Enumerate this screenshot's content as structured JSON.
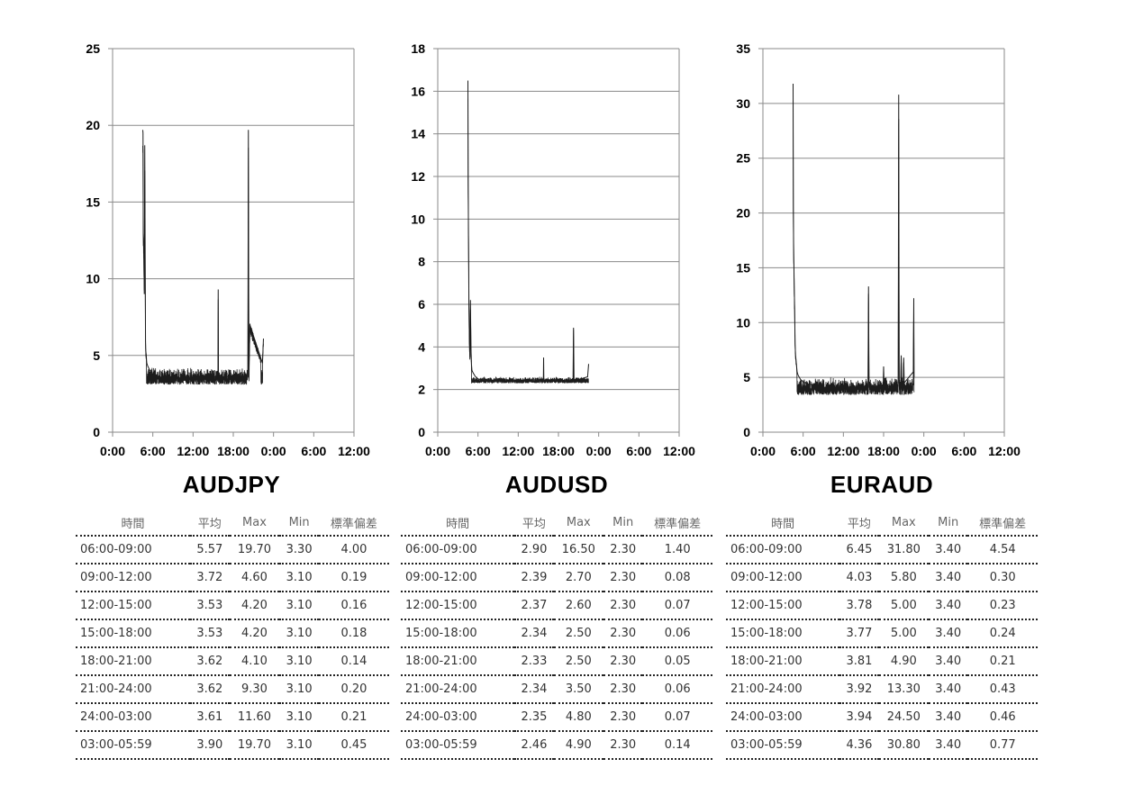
{
  "x_ticks": [
    "0:00",
    "6:00",
    "12:00",
    "18:00",
    "0:00",
    "6:00",
    "12:00"
  ],
  "table_headers": [
    "時間",
    "平均",
    "Max",
    "Min",
    "標準偏差"
  ],
  "panels": [
    {
      "title": "AUDJPY",
      "y_ticks": [
        "0",
        "5",
        "10",
        "15",
        "20",
        "25"
      ],
      "rows": [
        [
          "06:00-09:00",
          "5.57",
          "19.70",
          "3.30",
          "4.00"
        ],
        [
          "09:00-12:00",
          "3.72",
          "4.60",
          "3.10",
          "0.19"
        ],
        [
          "12:00-15:00",
          "3.53",
          "4.20",
          "3.10",
          "0.16"
        ],
        [
          "15:00-18:00",
          "3.53",
          "4.20",
          "3.10",
          "0.18"
        ],
        [
          "18:00-21:00",
          "3.62",
          "4.10",
          "3.10",
          "0.14"
        ],
        [
          "21:00-24:00",
          "3.62",
          "9.30",
          "3.10",
          "0.20"
        ],
        [
          "24:00-03:00",
          "3.61",
          "11.60",
          "3.10",
          "0.21"
        ],
        [
          "03:00-05:59",
          "3.90",
          "19.70",
          "3.10",
          "0.45"
        ]
      ]
    },
    {
      "title": "AUDUSD",
      "y_ticks": [
        "0",
        "2",
        "4",
        "6",
        "8",
        "10",
        "12",
        "14",
        "16",
        "18"
      ],
      "rows": [
        [
          "06:00-09:00",
          "2.90",
          "16.50",
          "2.30",
          "1.40"
        ],
        [
          "09:00-12:00",
          "2.39",
          "2.70",
          "2.30",
          "0.08"
        ],
        [
          "12:00-15:00",
          "2.37",
          "2.60",
          "2.30",
          "0.07"
        ],
        [
          "15:00-18:00",
          "2.34",
          "2.50",
          "2.30",
          "0.06"
        ],
        [
          "18:00-21:00",
          "2.33",
          "2.50",
          "2.30",
          "0.05"
        ],
        [
          "21:00-24:00",
          "2.34",
          "3.50",
          "2.30",
          "0.06"
        ],
        [
          "24:00-03:00",
          "2.35",
          "4.80",
          "2.30",
          "0.07"
        ],
        [
          "03:00-05:59",
          "2.46",
          "4.90",
          "2.30",
          "0.14"
        ]
      ]
    },
    {
      "title": "EURAUD",
      "y_ticks": [
        "0",
        "5",
        "10",
        "15",
        "20",
        "25",
        "30",
        "35"
      ],
      "rows": [
        [
          "06:00-09:00",
          "6.45",
          "31.80",
          "3.40",
          "4.54"
        ],
        [
          "09:00-12:00",
          "4.03",
          "5.80",
          "3.40",
          "0.30"
        ],
        [
          "12:00-15:00",
          "3.78",
          "5.00",
          "3.40",
          "0.23"
        ],
        [
          "15:00-18:00",
          "3.77",
          "5.00",
          "3.40",
          "0.24"
        ],
        [
          "18:00-21:00",
          "3.81",
          "4.90",
          "3.40",
          "0.21"
        ],
        [
          "21:00-24:00",
          "3.92",
          "13.30",
          "3.40",
          "0.43"
        ],
        [
          "24:00-03:00",
          "3.94",
          "24.50",
          "3.40",
          "0.46"
        ],
        [
          "03:00-05:59",
          "4.36",
          "30.80",
          "3.40",
          "0.77"
        ]
      ]
    }
  ],
  "chart_data": [
    {
      "type": "line",
      "title": "AUDJPY",
      "xlim": [
        0,
        48
      ],
      "ylim": [
        0,
        25
      ],
      "x_unit": "hours",
      "baseline": [
        3.1,
        4.2
      ],
      "x": [
        6.0,
        6.05,
        6.1,
        6.2,
        6.3,
        6.4,
        6.5,
        6.55,
        6.6,
        6.7,
        6.75,
        6.8,
        7.0,
        7.3,
        7.6,
        8.0,
        9.0,
        12.0,
        18.0,
        20.95,
        21.0,
        21.05,
        24.0,
        26.9,
        27.0,
        27.1,
        27.3,
        29.8,
        30.0
      ],
      "y": [
        19.7,
        19.5,
        13.0,
        12.0,
        9.0,
        18.7,
        9.5,
        6.0,
        5.3,
        5.0,
        4.7,
        4.5,
        4.3,
        4.1,
        3.9,
        3.8,
        3.6,
        3.5,
        3.6,
        3.6,
        9.3,
        3.6,
        3.6,
        3.6,
        19.7,
        3.6,
        7.0,
        4.5,
        6.1
      ]
    },
    {
      "type": "line",
      "title": "AUDUSD",
      "xlim": [
        0,
        48
      ],
      "ylim": [
        0,
        18
      ],
      "x_unit": "hours",
      "baseline": [
        2.3,
        2.6
      ],
      "x": [
        6.0,
        6.05,
        6.1,
        6.2,
        6.3,
        6.4,
        6.5,
        6.6,
        6.7,
        6.8,
        7.0,
        7.5,
        8.0,
        9.0,
        12.0,
        18.0,
        21.0,
        21.05,
        21.1,
        24.0,
        26.9,
        27.0,
        27.1,
        29.8,
        30.0
      ],
      "y": [
        16.5,
        11.7,
        9.7,
        6.0,
        4.2,
        3.5,
        6.2,
        4.0,
        3.2,
        2.9,
        2.8,
        2.6,
        2.5,
        2.45,
        2.4,
        2.4,
        2.4,
        3.5,
        2.4,
        2.4,
        2.4,
        4.9,
        2.4,
        2.6,
        3.2
      ]
    },
    {
      "type": "line",
      "title": "EURAUD",
      "xlim": [
        0,
        48
      ],
      "ylim": [
        0,
        35
      ],
      "x_unit": "hours",
      "baseline": [
        3.4,
        5.0
      ],
      "x": [
        6.0,
        6.05,
        6.1,
        6.2,
        6.3,
        6.4,
        6.5,
        6.6,
        6.7,
        6.8,
        7.0,
        7.5,
        8.0,
        9.0,
        12.0,
        18.0,
        20.9,
        21.0,
        21.1,
        23.9,
        24.0,
        24.1,
        26.9,
        27.0,
        27.1,
        27.4,
        27.5,
        27.6,
        27.9,
        28.0,
        28.1,
        29.9,
        30.0,
        30.05
      ],
      "y": [
        31.8,
        20.5,
        17.3,
        14.0,
        11.5,
        8.0,
        7.0,
        6.5,
        6.0,
        5.5,
        5.2,
        4.8,
        4.6,
        4.4,
        4.1,
        4.1,
        4.1,
        13.3,
        4.1,
        4.1,
        6.0,
        4.1,
        4.2,
        30.8,
        4.5,
        4.5,
        7.0,
        4.5,
        4.5,
        6.8,
        4.5,
        5.5,
        12.2,
        5.0
      ]
    }
  ]
}
